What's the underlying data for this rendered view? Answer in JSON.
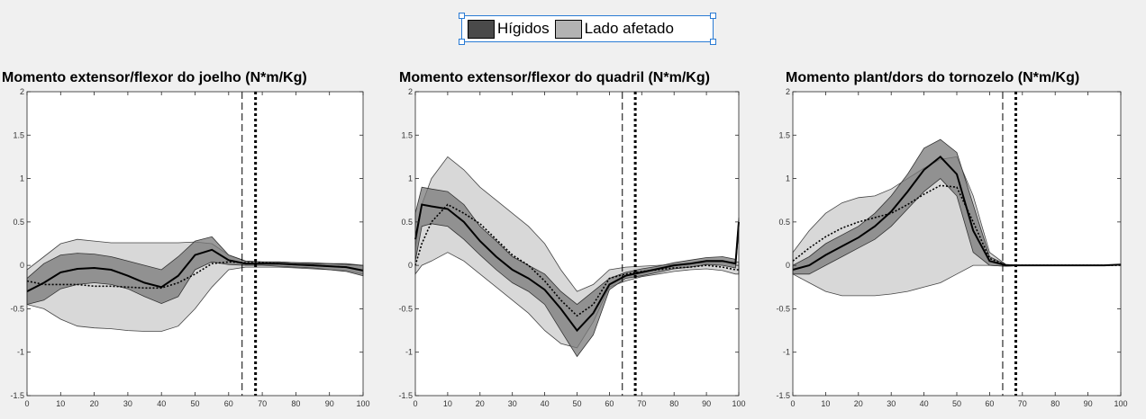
{
  "legend": {
    "items": [
      {
        "label": "Hígidos",
        "color": "#4a4a4a"
      },
      {
        "label": "Lado afetado",
        "color": "#b3b3b3"
      }
    ]
  },
  "colors": {
    "dark_band": "#7a7a7a",
    "light_band": "#d8d8d8",
    "overlap": "#9e9e9e",
    "line": "#000000"
  },
  "chart_data": [
    {
      "type": "line",
      "title": "Momento extensor/flexor do joelho (N*m/Kg)",
      "xlim": [
        0,
        100
      ],
      "ylim": [
        -1.5,
        2
      ],
      "xticks": [
        0,
        10,
        20,
        30,
        40,
        50,
        60,
        70,
        80,
        90,
        100
      ],
      "yticks": [
        -1.5,
        -1,
        -0.5,
        0,
        0.5,
        1,
        1.5,
        2
      ],
      "vlines": [
        {
          "x": 64,
          "style": "dashed"
        },
        {
          "x": 68,
          "style": "dotted"
        }
      ],
      "x": [
        0,
        5,
        10,
        15,
        20,
        25,
        30,
        35,
        40,
        45,
        50,
        55,
        60,
        65,
        70,
        75,
        80,
        85,
        90,
        95,
        100
      ],
      "series": [
        {
          "name": "Hígidos",
          "mean": [
            -0.3,
            -0.2,
            -0.08,
            -0.04,
            -0.03,
            -0.05,
            -0.12,
            -0.2,
            -0.25,
            -0.12,
            0.12,
            0.18,
            0.06,
            0.02,
            0.02,
            0.02,
            0.01,
            0.0,
            -0.01,
            -0.02,
            -0.06
          ],
          "upper": [
            -0.15,
            0.02,
            0.12,
            0.14,
            0.13,
            0.1,
            0.05,
            0.0,
            -0.05,
            0.1,
            0.28,
            0.33,
            0.12,
            0.05,
            0.04,
            0.04,
            0.03,
            0.02,
            0.02,
            0.01,
            0.0
          ],
          "lower": [
            -0.45,
            -0.4,
            -0.27,
            -0.22,
            -0.2,
            -0.22,
            -0.27,
            -0.36,
            -0.44,
            -0.36,
            -0.05,
            0.04,
            0.01,
            0.0,
            0.0,
            -0.01,
            -0.02,
            -0.03,
            -0.05,
            -0.07,
            -0.12
          ]
        },
        {
          "name": "Lado afetado",
          "mean": [
            -0.18,
            -0.22,
            -0.22,
            -0.22,
            -0.24,
            -0.24,
            -0.25,
            -0.26,
            -0.26,
            -0.2,
            -0.1,
            0.02,
            0.04,
            0.03,
            0.03,
            0.02,
            0.01,
            0.0,
            -0.01,
            -0.02,
            -0.06
          ],
          "upper": [
            -0.05,
            0.1,
            0.25,
            0.3,
            0.28,
            0.26,
            0.26,
            0.26,
            0.26,
            0.26,
            0.27,
            0.25,
            0.12,
            0.05,
            0.04,
            0.04,
            0.03,
            0.03,
            0.02,
            0.02,
            0.0
          ],
          "lower": [
            -0.45,
            -0.5,
            -0.62,
            -0.7,
            -0.72,
            -0.73,
            -0.75,
            -0.76,
            -0.76,
            -0.7,
            -0.5,
            -0.25,
            -0.05,
            -0.02,
            -0.02,
            -0.02,
            -0.03,
            -0.04,
            -0.05,
            -0.06,
            -0.1
          ]
        }
      ]
    },
    {
      "type": "line",
      "title": "Momento extensor/flexor do quadril (N*m/Kg)",
      "xlim": [
        0,
        100
      ],
      "ylim": [
        -1.5,
        2
      ],
      "xticks": [
        0,
        10,
        20,
        30,
        40,
        50,
        60,
        70,
        80,
        90,
        100
      ],
      "yticks": [
        -1.5,
        -1,
        -0.5,
        0,
        0.5,
        1,
        1.5,
        2
      ],
      "vlines": [
        {
          "x": 64,
          "style": "dashed"
        },
        {
          "x": 68,
          "style": "dotted"
        }
      ],
      "x": [
        0,
        2,
        5,
        10,
        15,
        20,
        25,
        30,
        35,
        40,
        45,
        50,
        55,
        60,
        65,
        70,
        75,
        80,
        85,
        90,
        95,
        99,
        100
      ],
      "series": [
        {
          "name": "Hígidos",
          "mean": [
            0.3,
            0.7,
            0.68,
            0.65,
            0.5,
            0.28,
            0.1,
            -0.05,
            -0.15,
            -0.28,
            -0.5,
            -0.75,
            -0.55,
            -0.22,
            -0.12,
            -0.08,
            -0.04,
            0.0,
            0.02,
            0.05,
            0.05,
            0.02,
            0.5
          ],
          "upper": [
            0.6,
            0.9,
            0.88,
            0.85,
            0.7,
            0.45,
            0.28,
            0.1,
            0.0,
            -0.1,
            -0.3,
            -0.45,
            -0.3,
            -0.15,
            -0.08,
            -0.04,
            -0.01,
            0.03,
            0.06,
            0.09,
            0.1,
            0.07,
            0.55
          ],
          "lower": [
            0.05,
            0.45,
            0.48,
            0.45,
            0.3,
            0.12,
            -0.05,
            -0.2,
            -0.3,
            -0.45,
            -0.75,
            -1.05,
            -0.8,
            -0.28,
            -0.15,
            -0.12,
            -0.08,
            -0.04,
            -0.02,
            0.01,
            0.0,
            -0.03,
            0.4
          ]
        },
        {
          "name": "Lado afetado",
          "mean": [
            0.0,
            0.25,
            0.5,
            0.7,
            0.6,
            0.48,
            0.3,
            0.12,
            0.0,
            -0.18,
            -0.4,
            -0.58,
            -0.45,
            -0.15,
            -0.1,
            -0.07,
            -0.05,
            -0.03,
            -0.02,
            0.0,
            -0.02,
            -0.05,
            -0.05
          ],
          "upper": [
            0.2,
            0.7,
            1.0,
            1.25,
            1.1,
            0.9,
            0.75,
            0.6,
            0.45,
            0.25,
            -0.05,
            -0.3,
            -0.22,
            -0.05,
            -0.02,
            -0.01,
            0.0,
            0.01,
            0.02,
            0.03,
            0.04,
            0.04,
            0.04
          ],
          "lower": [
            -0.1,
            0.0,
            0.05,
            0.15,
            0.05,
            -0.1,
            -0.25,
            -0.4,
            -0.55,
            -0.75,
            -0.9,
            -0.95,
            -0.65,
            -0.25,
            -0.18,
            -0.13,
            -0.1,
            -0.07,
            -0.05,
            -0.04,
            -0.06,
            -0.1,
            -0.1
          ]
        }
      ]
    },
    {
      "type": "line",
      "title": "Momento plant/dors do tornozelo (N*m/Kg)",
      "xlim": [
        0,
        100
      ],
      "ylim": [
        -1.5,
        2
      ],
      "xticks": [
        0,
        10,
        20,
        30,
        40,
        50,
        60,
        70,
        80,
        90,
        100
      ],
      "yticks": [
        -1.5,
        -1,
        -0.5,
        0,
        0.5,
        1,
        1.5,
        2
      ],
      "vlines": [
        {
          "x": 64,
          "style": "dashed"
        },
        {
          "x": 68,
          "style": "dotted"
        }
      ],
      "x": [
        0,
        5,
        10,
        15,
        20,
        25,
        30,
        35,
        40,
        45,
        50,
        55,
        60,
        65,
        70,
        75,
        80,
        85,
        90,
        95,
        100
      ],
      "series": [
        {
          "name": "Hígidos",
          "mean": [
            -0.05,
            0.0,
            0.12,
            0.22,
            0.32,
            0.45,
            0.62,
            0.85,
            1.1,
            1.25,
            1.05,
            0.4,
            0.05,
            0.0,
            0.0,
            0.0,
            0.0,
            0.0,
            0.0,
            0.0,
            0.01
          ],
          "upper": [
            0.0,
            0.1,
            0.25,
            0.35,
            0.45,
            0.6,
            0.8,
            1.05,
            1.35,
            1.45,
            1.3,
            0.7,
            0.1,
            0.01,
            0.0,
            0.0,
            0.0,
            0.0,
            0.0,
            0.0,
            0.01
          ],
          "lower": [
            -0.1,
            -0.1,
            0.0,
            0.1,
            0.2,
            0.3,
            0.45,
            0.65,
            0.85,
            1.0,
            0.8,
            0.15,
            0.0,
            -0.01,
            0.0,
            0.0,
            0.0,
            0.0,
            0.0,
            0.0,
            0.0
          ]
        },
        {
          "name": "Lado afetado",
          "mean": [
            0.05,
            0.2,
            0.33,
            0.43,
            0.5,
            0.55,
            0.6,
            0.7,
            0.82,
            0.92,
            0.9,
            0.5,
            0.08,
            0.0,
            0.0,
            0.0,
            0.0,
            0.0,
            0.0,
            0.0,
            0.0
          ],
          "upper": [
            0.15,
            0.4,
            0.6,
            0.72,
            0.78,
            0.8,
            0.88,
            1.0,
            1.12,
            1.22,
            1.25,
            0.8,
            0.15,
            0.01,
            0.0,
            0.0,
            0.0,
            0.0,
            0.0,
            0.0,
            0.0
          ],
          "lower": [
            -0.1,
            -0.2,
            -0.3,
            -0.35,
            -0.35,
            -0.35,
            -0.33,
            -0.3,
            -0.25,
            -0.2,
            -0.1,
            0.0,
            0.0,
            -0.01,
            0.0,
            0.0,
            0.0,
            0.0,
            0.0,
            0.0,
            0.0
          ]
        }
      ]
    }
  ]
}
